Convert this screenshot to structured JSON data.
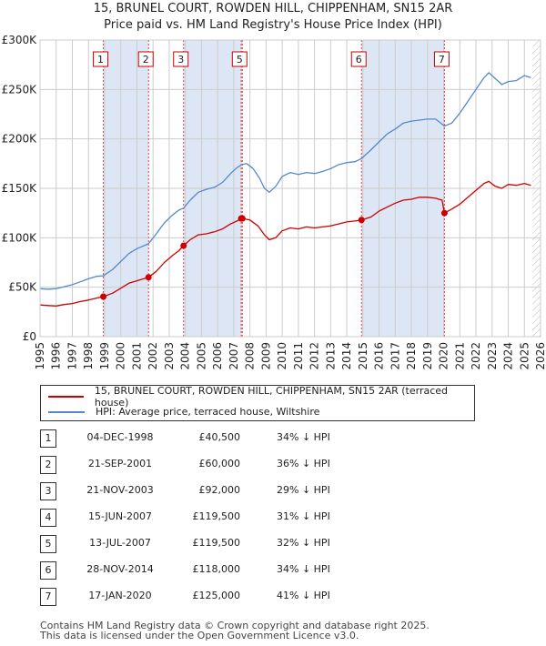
{
  "title": {
    "line1": "15, BRUNEL COURT, ROWDEN HILL, CHIPPENHAM, SN15 2AR",
    "line2": "Price paid vs. HM Land Registry's House Price Index (HPI)"
  },
  "colors": {
    "price_line": "#cc0000",
    "hpi_line": "#5588cc",
    "shade": "#dde6f5",
    "marker_line": "#dd4444",
    "grid": "#cccccc"
  },
  "chart_data": {
    "type": "line",
    "xlabel": "",
    "ylabel": "",
    "xlim": [
      1995,
      2026
    ],
    "ylim": [
      0,
      300000
    ],
    "y_ticks": [
      0,
      50000,
      100000,
      150000,
      200000,
      250000,
      300000
    ],
    "y_tick_labels": [
      "£0",
      "£50K",
      "£100K",
      "£150K",
      "£200K",
      "£250K",
      "£300K"
    ],
    "x_ticks": [
      "1995",
      "1996",
      "1997",
      "1998",
      "1999",
      "2000",
      "2001",
      "2002",
      "2003",
      "2004",
      "2005",
      "2006",
      "2007",
      "2008",
      "2009",
      "2010",
      "2011",
      "2012",
      "2013",
      "2014",
      "2015",
      "2016",
      "2017",
      "2018",
      "2019",
      "2020",
      "2021",
      "2022",
      "2023",
      "2024",
      "2025",
      "2026"
    ],
    "grid": true,
    "hatched_region_from": 2025.5,
    "shaded_regions": [
      [
        1998.92,
        2001.72
      ],
      [
        2003.89,
        2007.53
      ],
      [
        2014.91,
        2020.05
      ]
    ],
    "series": [
      {
        "name": "15, BRUNEL COURT, ROWDEN HILL, CHIPPENHAM, SN15 2AR (terraced house)",
        "color": "#cc0000",
        "points": [
          [
            1995.0,
            32000
          ],
          [
            1995.5,
            31500
          ],
          [
            1996.0,
            31000
          ],
          [
            1996.5,
            32500
          ],
          [
            1997.0,
            33500
          ],
          [
            1997.5,
            35500
          ],
          [
            1998.0,
            37000
          ],
          [
            1998.5,
            39000
          ],
          [
            1998.92,
            40500
          ],
          [
            1999.5,
            44000
          ],
          [
            2000.0,
            49000
          ],
          [
            2000.5,
            54000
          ],
          [
            2001.0,
            56500
          ],
          [
            2001.72,
            60000
          ],
          [
            2002.2,
            66000
          ],
          [
            2002.7,
            75000
          ],
          [
            2003.2,
            82000
          ],
          [
            2003.6,
            87000
          ],
          [
            2003.89,
            92000
          ],
          [
            2004.3,
            98000
          ],
          [
            2004.8,
            103000
          ],
          [
            2005.3,
            104000
          ],
          [
            2005.8,
            106000
          ],
          [
            2006.3,
            109000
          ],
          [
            2006.8,
            114000
          ],
          [
            2007.2,
            117000
          ],
          [
            2007.46,
            119500
          ],
          [
            2007.53,
            119500
          ],
          [
            2008.0,
            118000
          ],
          [
            2008.5,
            112000
          ],
          [
            2008.9,
            103000
          ],
          [
            2009.2,
            98000
          ],
          [
            2009.6,
            100000
          ],
          [
            2010.0,
            107000
          ],
          [
            2010.5,
            110000
          ],
          [
            2011.0,
            109000
          ],
          [
            2011.5,
            111000
          ],
          [
            2012.0,
            110000
          ],
          [
            2012.5,
            111000
          ],
          [
            2013.0,
            112000
          ],
          [
            2013.5,
            114000
          ],
          [
            2014.0,
            116000
          ],
          [
            2014.5,
            117000
          ],
          [
            2014.91,
            118000
          ],
          [
            2015.5,
            121000
          ],
          [
            2016.0,
            127000
          ],
          [
            2016.5,
            131000
          ],
          [
            2017.0,
            135000
          ],
          [
            2017.5,
            138000
          ],
          [
            2018.0,
            139000
          ],
          [
            2018.5,
            141000
          ],
          [
            2019.0,
            141000
          ],
          [
            2019.5,
            140000
          ],
          [
            2019.9,
            138000
          ],
          [
            2020.05,
            125000
          ],
          [
            2020.5,
            129000
          ],
          [
            2021.0,
            134000
          ],
          [
            2021.5,
            141000
          ],
          [
            2022.0,
            148000
          ],
          [
            2022.5,
            155000
          ],
          [
            2022.8,
            157000
          ],
          [
            2023.2,
            152000
          ],
          [
            2023.6,
            150000
          ],
          [
            2024.0,
            154000
          ],
          [
            2024.5,
            153000
          ],
          [
            2025.0,
            155000
          ],
          [
            2025.4,
            153000
          ]
        ]
      },
      {
        "name": "HPI: Average price, terraced house, Wiltshire",
        "color": "#5588cc",
        "points": [
          [
            1995.0,
            48500
          ],
          [
            1995.5,
            48000
          ],
          [
            1996.0,
            48500
          ],
          [
            1996.5,
            50500
          ],
          [
            1997.0,
            52500
          ],
          [
            1997.5,
            55500
          ],
          [
            1998.0,
            58500
          ],
          [
            1998.5,
            61000
          ],
          [
            1998.92,
            61500
          ],
          [
            1999.5,
            68000
          ],
          [
            2000.0,
            76000
          ],
          [
            2000.5,
            84000
          ],
          [
            2001.0,
            89000
          ],
          [
            2001.72,
            94000
          ],
          [
            2002.2,
            104000
          ],
          [
            2002.7,
            115000
          ],
          [
            2003.2,
            123000
          ],
          [
            2003.6,
            128000
          ],
          [
            2003.89,
            130000
          ],
          [
            2004.3,
            138000
          ],
          [
            2004.8,
            146000
          ],
          [
            2005.3,
            149000
          ],
          [
            2005.8,
            151000
          ],
          [
            2006.3,
            156000
          ],
          [
            2006.8,
            165000
          ],
          [
            2007.2,
            171000
          ],
          [
            2007.5,
            174000
          ],
          [
            2007.8,
            175000
          ],
          [
            2008.2,
            170000
          ],
          [
            2008.6,
            160000
          ],
          [
            2008.9,
            150000
          ],
          [
            2009.2,
            146000
          ],
          [
            2009.6,
            152000
          ],
          [
            2010.0,
            162000
          ],
          [
            2010.5,
            166000
          ],
          [
            2011.0,
            164000
          ],
          [
            2011.5,
            166000
          ],
          [
            2012.0,
            165000
          ],
          [
            2012.5,
            167000
          ],
          [
            2013.0,
            170000
          ],
          [
            2013.5,
            174000
          ],
          [
            2014.0,
            176000
          ],
          [
            2014.5,
            177000
          ],
          [
            2014.91,
            180000
          ],
          [
            2015.5,
            189000
          ],
          [
            2016.0,
            197000
          ],
          [
            2016.5,
            205000
          ],
          [
            2017.0,
            210000
          ],
          [
            2017.5,
            216000
          ],
          [
            2018.0,
            218000
          ],
          [
            2018.5,
            219000
          ],
          [
            2019.0,
            220000
          ],
          [
            2019.5,
            220000
          ],
          [
            2020.05,
            213000
          ],
          [
            2020.5,
            216000
          ],
          [
            2021.0,
            226000
          ],
          [
            2021.5,
            238000
          ],
          [
            2022.0,
            250000
          ],
          [
            2022.5,
            262000
          ],
          [
            2022.8,
            267000
          ],
          [
            2023.2,
            261000
          ],
          [
            2023.6,
            255000
          ],
          [
            2024.0,
            258000
          ],
          [
            2024.5,
            259000
          ],
          [
            2025.0,
            264000
          ],
          [
            2025.4,
            262000
          ]
        ]
      }
    ],
    "markers": [
      {
        "label": "1",
        "x": 1998.92,
        "y": 40500
      },
      {
        "label": "2",
        "x": 2001.72,
        "y": 60000
      },
      {
        "label": "3",
        "x": 2003.89,
        "y": 92000
      },
      {
        "label": "4",
        "x": 2007.46,
        "y": 119500
      },
      {
        "label": "5",
        "x": 2007.53,
        "y": 119500
      },
      {
        "label": "6",
        "x": 2014.91,
        "y": 118000
      },
      {
        "label": "7",
        "x": 2020.05,
        "y": 125000
      }
    ],
    "marker_box_labels": [
      "1",
      "2",
      "3",
      "5",
      "6",
      "7"
    ]
  },
  "legend": {
    "items": [
      {
        "label": "15, BRUNEL COURT, ROWDEN HILL, CHIPPENHAM, SN15 2AR (terraced house)"
      },
      {
        "label": "HPI: Average price, terraced house, Wiltshire"
      }
    ]
  },
  "transactions": [
    {
      "num": "1",
      "date": "04-DEC-1998",
      "price": "£40,500",
      "hpi": "34% ↓ HPI"
    },
    {
      "num": "2",
      "date": "21-SEP-2001",
      "price": "£60,000",
      "hpi": "36% ↓ HPI"
    },
    {
      "num": "3",
      "date": "21-NOV-2003",
      "price": "£92,000",
      "hpi": "29% ↓ HPI"
    },
    {
      "num": "4",
      "date": "15-JUN-2007",
      "price": "£119,500",
      "hpi": "31% ↓ HPI"
    },
    {
      "num": "5",
      "date": "13-JUL-2007",
      "price": "£119,500",
      "hpi": "32% ↓ HPI"
    },
    {
      "num": "6",
      "date": "28-NOV-2014",
      "price": "£118,000",
      "hpi": "34% ↓ HPI"
    },
    {
      "num": "7",
      "date": "17-JAN-2020",
      "price": "£125,000",
      "hpi": "41% ↓ HPI"
    }
  ],
  "footer": {
    "line1": "Contains HM Land Registry data © Crown copyright and database right 2025.",
    "line2": "This data is licensed under the Open Government Licence v3.0."
  }
}
